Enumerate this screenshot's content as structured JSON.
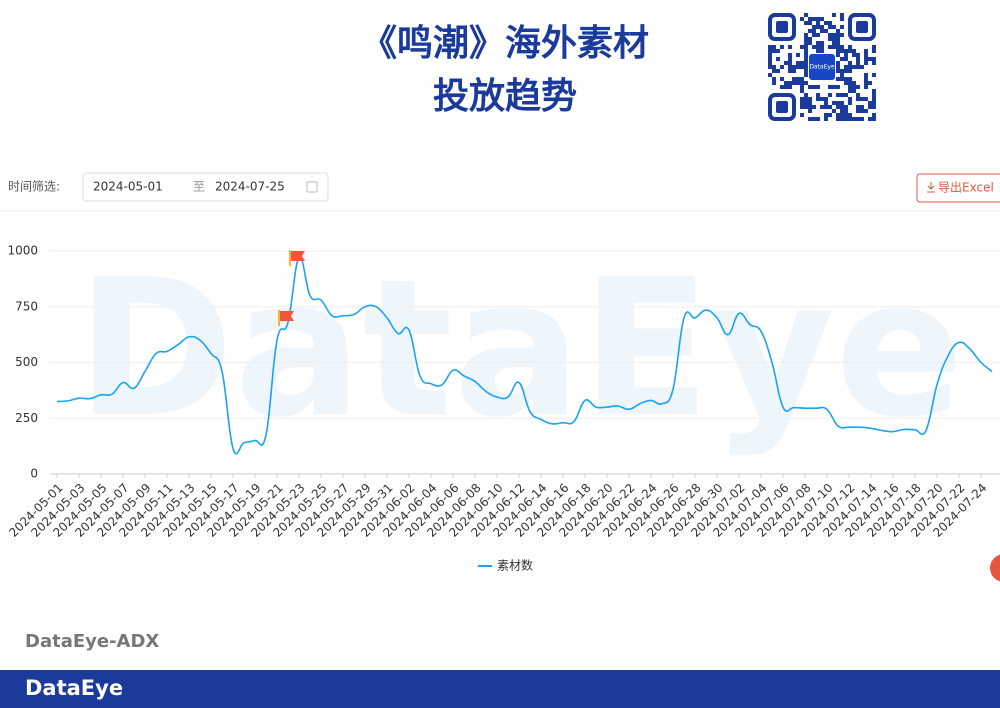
{
  "header": {
    "title_lines": [
      "《鸣潮》海外素材",
      "投放趋势"
    ]
  },
  "qr_label": "DataEye",
  "filter": {
    "label": "时间筛选:",
    "start": "2024-05-01",
    "separator": "至",
    "end": "2024-07-25"
  },
  "export_button": "导出Excel",
  "watermark": "DataEye",
  "chart_data": {
    "type": "line",
    "categories": [
      "2024-05-01",
      null,
      "2024-05-03",
      null,
      "2024-05-05",
      null,
      "2024-05-07",
      null,
      "2024-05-09",
      null,
      "2024-05-11",
      null,
      "2024-05-13",
      null,
      "2024-05-15",
      null,
      "2024-05-17",
      null,
      "2024-05-19",
      null,
      "2024-05-21",
      null,
      "2024-05-23",
      null,
      "2024-05-25",
      null,
      "2024-05-27",
      null,
      "2024-05-29",
      null,
      "2024-05-31",
      null,
      "2024-06-02",
      null,
      "2024-06-04",
      null,
      "2024-06-06",
      null,
      "2024-06-08",
      null,
      "2024-06-10",
      null,
      "2024-06-12",
      null,
      "2024-06-14",
      null,
      "2024-06-16",
      null,
      "2024-06-18",
      null,
      "2024-06-20",
      null,
      "2024-06-22",
      null,
      "2024-06-24",
      null,
      "2024-06-26",
      null,
      "2024-06-28",
      null,
      "2024-06-30",
      null,
      "2024-07-02",
      null,
      "2024-07-04",
      null,
      "2024-07-06",
      null,
      "2024-07-08",
      null,
      "2024-07-10",
      null,
      "2024-07-12",
      null,
      "2024-07-14",
      null,
      "2024-07-16",
      null,
      "2024-07-18",
      null,
      "2024-07-20",
      null,
      "2024-07-22",
      null,
      "2024-07-24",
      null
    ],
    "series": [
      {
        "name": "素材数",
        "color": "#1aa3f5",
        "values": [
          325,
          328,
          340,
          338,
          355,
          358,
          410,
          385,
          460,
          540,
          550,
          580,
          615,
          600,
          540,
          460,
          115,
          140,
          150,
          175,
          600,
          680,
          970,
          800,
          780,
          710,
          710,
          715,
          750,
          750,
          700,
          630,
          645,
          440,
          405,
          400,
          465,
          440,
          415,
          370,
          345,
          345,
          410,
          280,
          245,
          225,
          230,
          235,
          330,
          300,
          300,
          305,
          290,
          315,
          330,
          315,
          380,
          700,
          700,
          735,
          700,
          625,
          720,
          670,
          640,
          500,
          300,
          298,
          295,
          295,
          290,
          215,
          210,
          210,
          205,
          195,
          190,
          200,
          198,
          195,
          400,
          530,
          590,
          560,
          500,
          460
        ]
      }
    ],
    "ylim": [
      0,
      1000
    ],
    "yticks": [
      0,
      250,
      500,
      750,
      1000
    ],
    "grid": true,
    "legend": "bottom"
  },
  "footer": {
    "source": "DataEye-ADX",
    "brand": "DataEye"
  }
}
